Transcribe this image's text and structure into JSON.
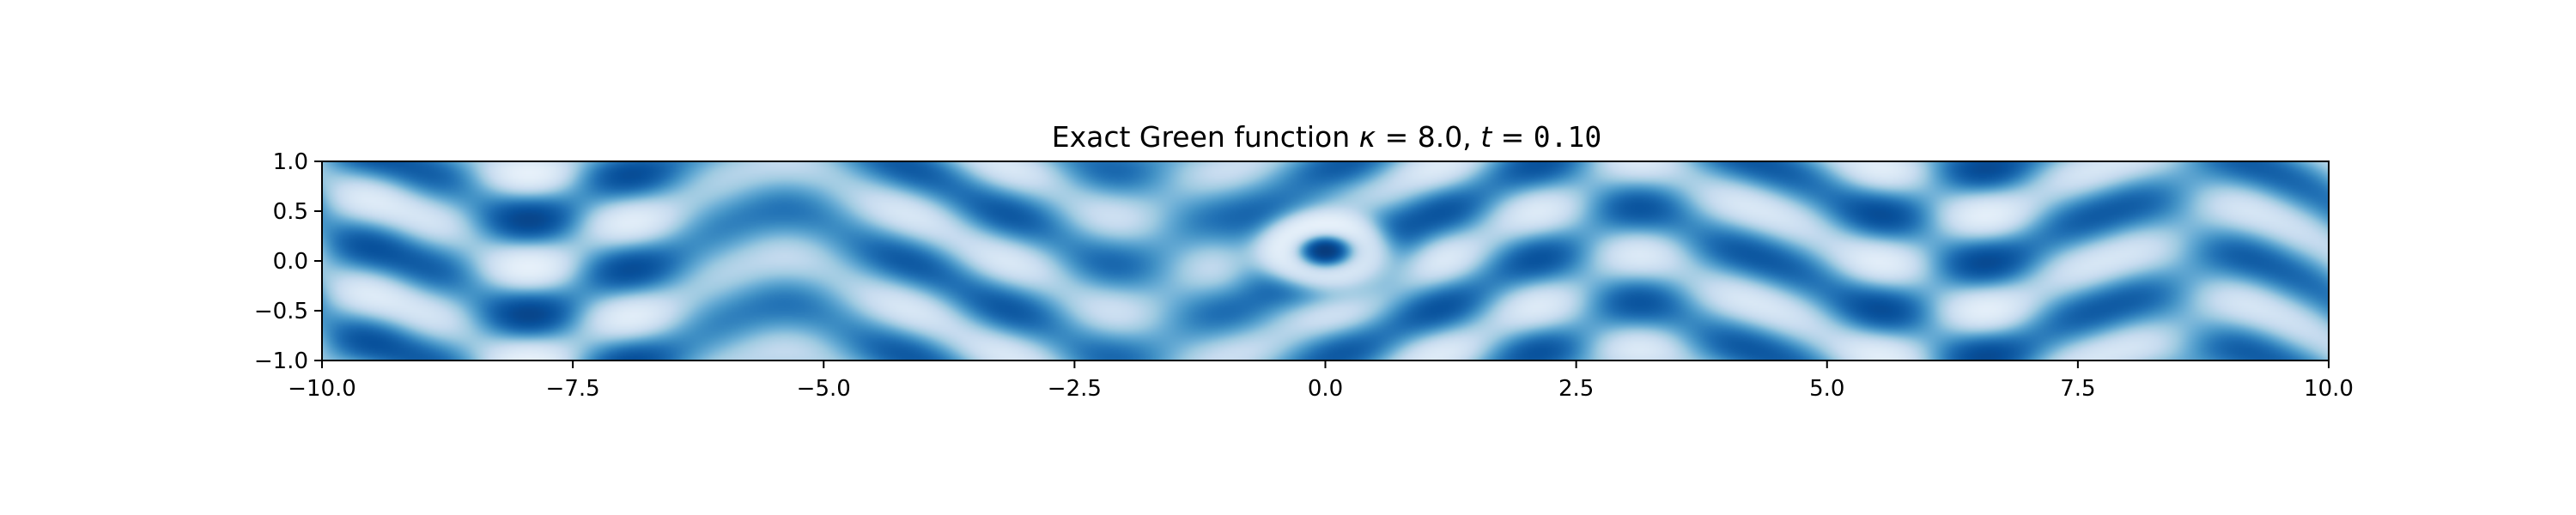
{
  "chart_data": {
    "type": "heatmap",
    "title_parts": {
      "prefix": "Exact Green function ",
      "kappa_symbol": "κ",
      "kappa_eq": " = ",
      "kappa_value": "8.0",
      "sep": ", ",
      "t_symbol": "t",
      "t_eq": " = ",
      "t_value": "0.10"
    },
    "parameters": {
      "kappa": 8.0,
      "t": 0.1
    },
    "xlabel": "",
    "ylabel": "",
    "xlim": [
      -10.0,
      10.0
    ],
    "ylim": [
      -1.0,
      1.0
    ],
    "x_ticks": [
      -10.0,
      -7.5,
      -5.0,
      -2.5,
      0.0,
      2.5,
      5.0,
      7.5,
      10.0
    ],
    "x_tick_labels": [
      "−10.0",
      "−7.5",
      "−5.0",
      "−2.5",
      "0.0",
      "2.5",
      "5.0",
      "7.5",
      "10.0"
    ],
    "y_ticks": [
      1.0,
      0.5,
      0.0,
      -0.5,
      -1.0
    ],
    "y_tick_labels": [
      "1.0",
      "0.5",
      "0.0",
      "−0.5",
      "−1.0"
    ],
    "colormap": "Blues",
    "colormap_stops": [
      "#f7fbff",
      "#deebf7",
      "#c6dbef",
      "#9ecae1",
      "#6baed6",
      "#4292c6",
      "#2171b5",
      "#08519c",
      "#08306b"
    ],
    "source_point": [
      0.0,
      0.1
    ],
    "grid": false,
    "legend": "none"
  }
}
